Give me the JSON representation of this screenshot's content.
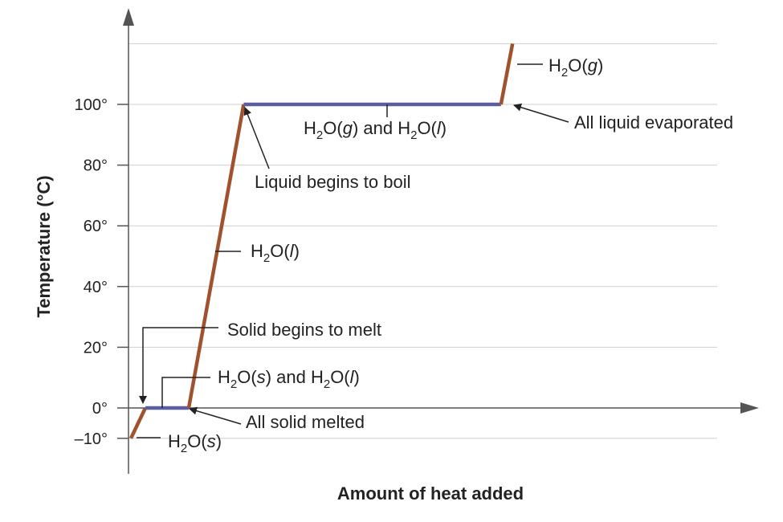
{
  "chart_data": {
    "type": "line",
    "title": "",
    "xlabel": "Amount of heat added",
    "ylabel": "Temperature (°C)",
    "ylim": [
      -10,
      120
    ],
    "yticks": [
      {
        "value": -10,
        "label": "–10°"
      },
      {
        "value": 0,
        "label": "0°"
      },
      {
        "value": 20,
        "label": "20°"
      },
      {
        "value": 40,
        "label": "40°"
      },
      {
        "value": 60,
        "label": "60°"
      },
      {
        "value": 80,
        "label": "80°"
      },
      {
        "value": 100,
        "label": "100°"
      }
    ],
    "grid": true,
    "colors": {
      "heating": "#a0522d",
      "phase_change": "#5b5f9f",
      "grid": "#cfcfcf",
      "axis": "#555555"
    },
    "segments": [
      {
        "kind": "heating",
        "x": [
          0.0,
          0.25
        ],
        "y": [
          -10,
          0
        ]
      },
      {
        "kind": "phase_change",
        "x": [
          0.25,
          1.0
        ],
        "y": [
          0,
          0
        ]
      },
      {
        "kind": "heating",
        "x": [
          1.0,
          1.95
        ],
        "y": [
          0,
          100
        ]
      },
      {
        "kind": "phase_change",
        "x": [
          1.95,
          6.4
        ],
        "y": [
          100,
          100
        ]
      },
      {
        "kind": "heating",
        "x": [
          6.4,
          6.6
        ],
        "y": [
          100,
          120
        ]
      }
    ],
    "annotations": {
      "h2o_s": {
        "parts": [
          {
            "t": "H"
          },
          {
            "t": "2",
            "sub": true
          },
          {
            "t": "O("
          },
          {
            "t": "s",
            "italic": true
          },
          {
            "t": ")"
          }
        ]
      },
      "solid_liquid": {
        "parts": [
          {
            "t": "H"
          },
          {
            "t": "2",
            "sub": true
          },
          {
            "t": "O("
          },
          {
            "t": "s",
            "italic": true
          },
          {
            "t": ") and H"
          },
          {
            "t": "2",
            "sub": true
          },
          {
            "t": "O("
          },
          {
            "t": "l",
            "italic": true
          },
          {
            "t": ")"
          }
        ]
      },
      "h2o_l": {
        "parts": [
          {
            "t": "H"
          },
          {
            "t": "2",
            "sub": true
          },
          {
            "t": "O("
          },
          {
            "t": "l",
            "italic": true
          },
          {
            "t": ")"
          }
        ]
      },
      "gas_liquid": {
        "parts": [
          {
            "t": "H"
          },
          {
            "t": "2",
            "sub": true
          },
          {
            "t": "O("
          },
          {
            "t": "g",
            "italic": true
          },
          {
            "t": ") and H"
          },
          {
            "t": "2",
            "sub": true
          },
          {
            "t": "O("
          },
          {
            "t": "l",
            "italic": true
          },
          {
            "t": ")"
          }
        ]
      },
      "h2o_g": {
        "parts": [
          {
            "t": "H"
          },
          {
            "t": "2",
            "sub": true
          },
          {
            "t": "O("
          },
          {
            "t": "g",
            "italic": true
          },
          {
            "t": ")"
          }
        ]
      },
      "solid_begins_melt": "Solid begins to melt",
      "all_solid_melted": "All solid melted",
      "liquid_begins_boil": "Liquid begins to boil",
      "all_liquid_evaporated": "All liquid evaporated"
    }
  }
}
